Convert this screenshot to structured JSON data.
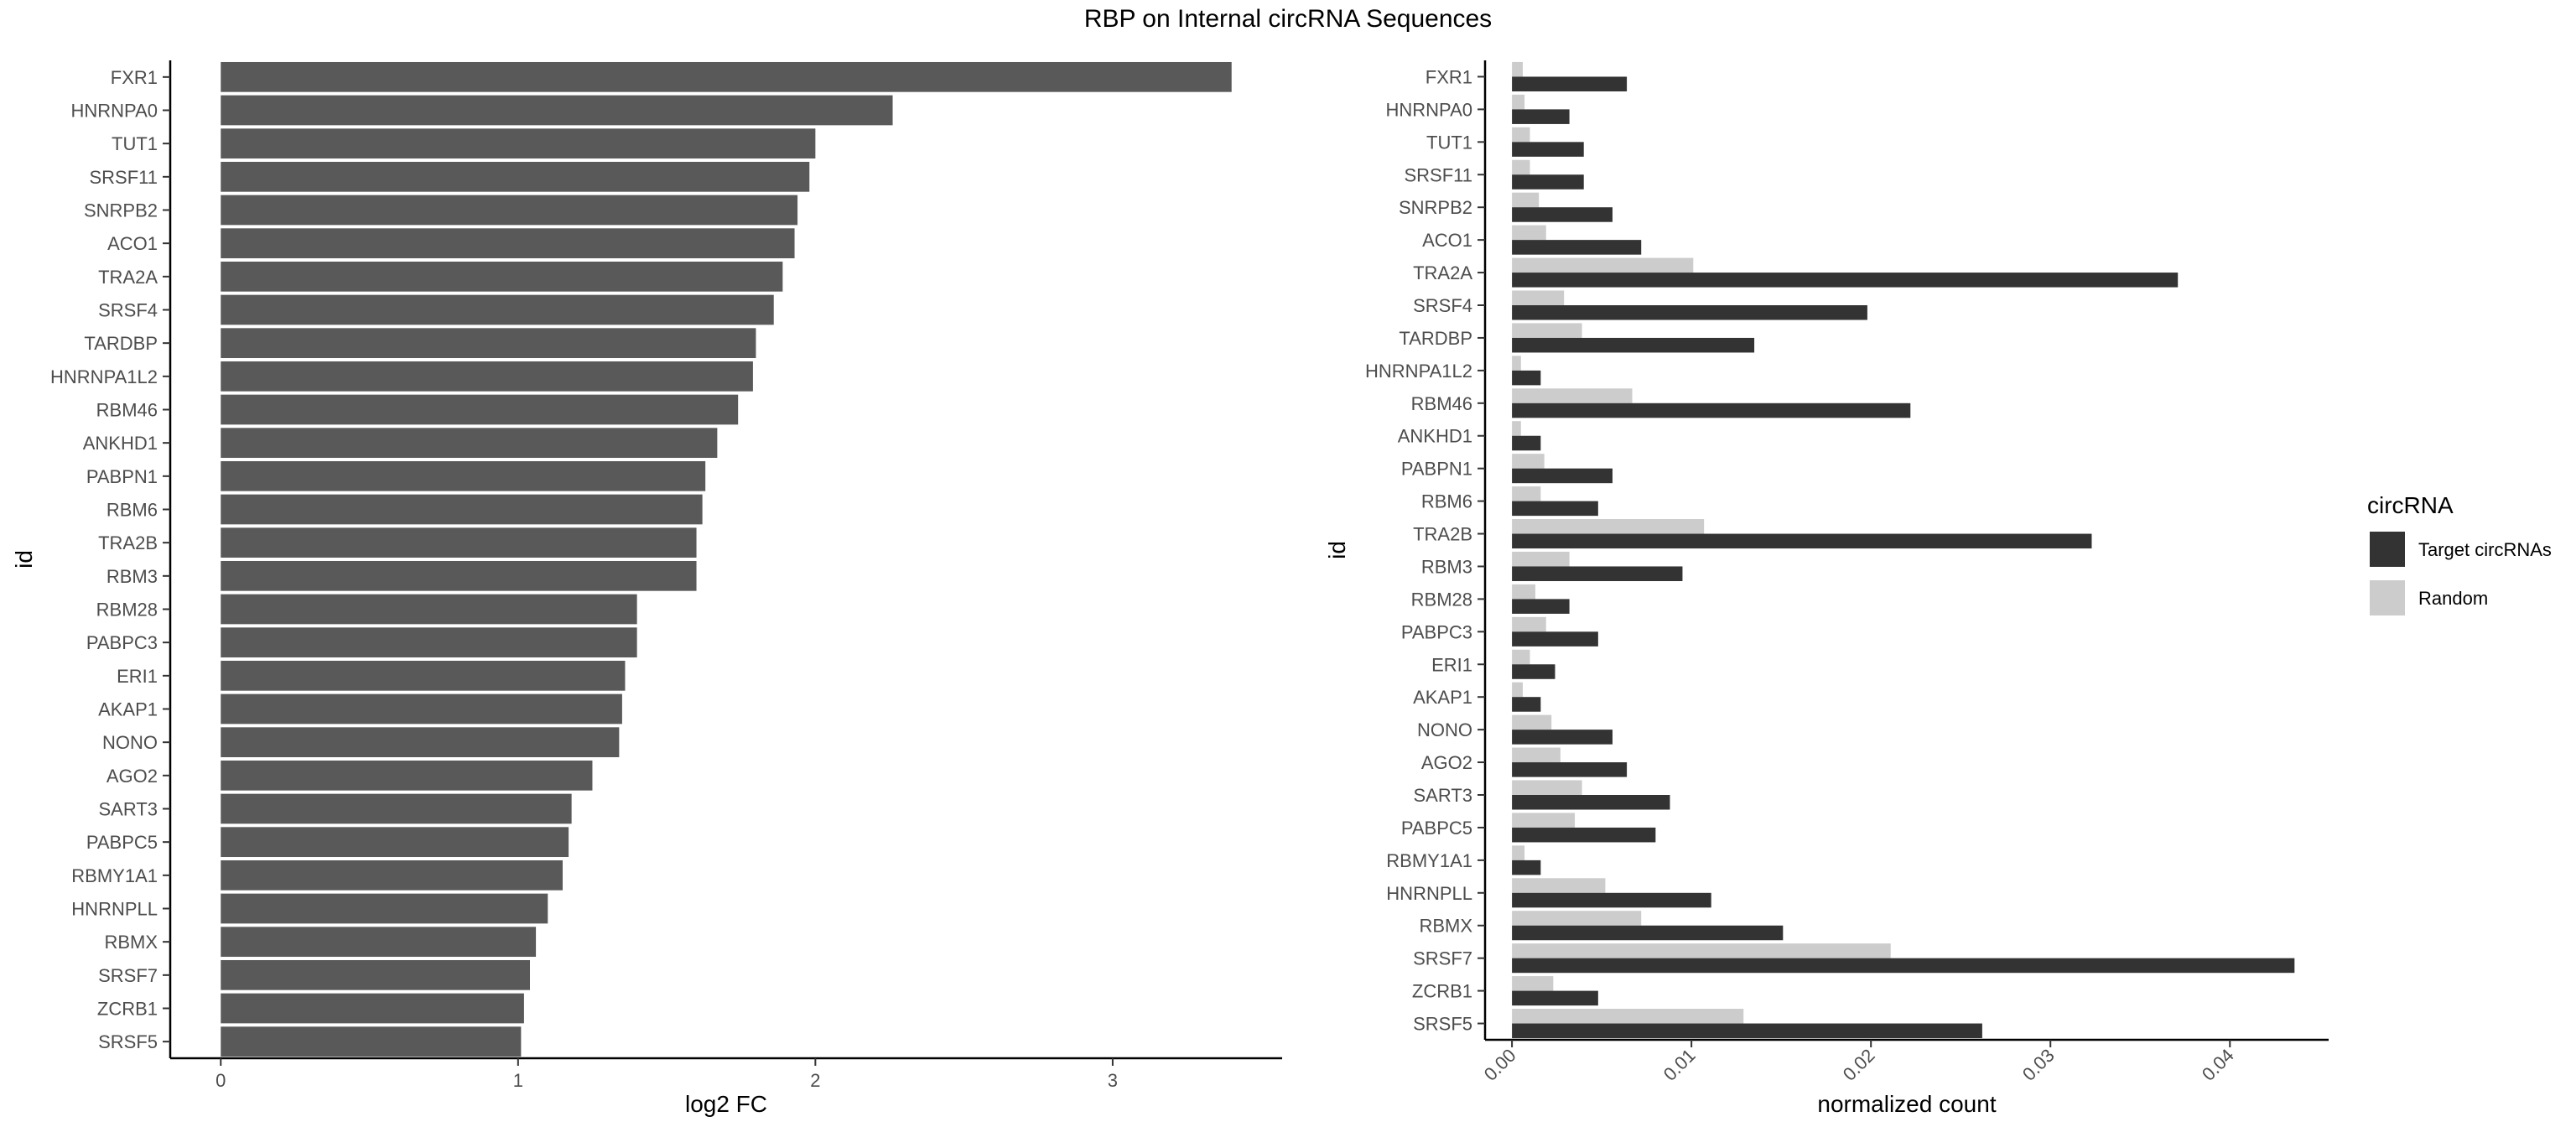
{
  "title": "RBP on Internal circRNA Sequences",
  "chart_data": [
    {
      "type": "bar",
      "orientation": "horizontal",
      "xlabel": "log2 FC",
      "ylabel": "id",
      "xlim": [
        -0.17,
        3.57
      ],
      "xticks": [
        0,
        1,
        2,
        3
      ],
      "xtick_labels": [
        "0",
        "1",
        "2",
        "3"
      ],
      "grid": false,
      "bar_color": "#595959",
      "categories": [
        "FXR1",
        "HNRNPA0",
        "TUT1",
        "SRSF11",
        "SNRPB2",
        "ACO1",
        "TRA2A",
        "SRSF4",
        "TARDBP",
        "HNRNPA1L2",
        "RBM46",
        "ANKHD1",
        "PABPN1",
        "RBM6",
        "TRA2B",
        "RBM3",
        "RBM28",
        "PABPC3",
        "ERI1",
        "AKAP1",
        "NONO",
        "AGO2",
        "SART3",
        "PABPC5",
        "RBMY1A1",
        "HNRNPLL",
        "RBMX",
        "SRSF7",
        "ZCRB1",
        "SRSF5"
      ],
      "values": [
        3.4,
        2.26,
        2.0,
        1.98,
        1.94,
        1.93,
        1.89,
        1.86,
        1.8,
        1.79,
        1.74,
        1.67,
        1.63,
        1.62,
        1.6,
        1.6,
        1.4,
        1.4,
        1.36,
        1.35,
        1.34,
        1.25,
        1.18,
        1.17,
        1.15,
        1.1,
        1.06,
        1.04,
        1.02,
        1.01
      ]
    },
    {
      "type": "bar",
      "orientation": "horizontal",
      "grouped": true,
      "xlabel": "normalized count",
      "ylabel": "id",
      "xlim": [
        -0.0015,
        0.0455
      ],
      "xticks": [
        0,
        0.01,
        0.02,
        0.03,
        0.04
      ],
      "xtick_labels": [
        "0.00",
        "0.01",
        "0.02",
        "0.03",
        "0.04"
      ],
      "xtick_rotation": -45,
      "grid": false,
      "legend": {
        "title": "circRNA",
        "position": "right"
      },
      "categories": [
        "FXR1",
        "HNRNPA0",
        "TUT1",
        "SRSF11",
        "SNRPB2",
        "ACO1",
        "TRA2A",
        "SRSF4",
        "TARDBP",
        "HNRNPA1L2",
        "RBM46",
        "ANKHD1",
        "PABPN1",
        "RBM6",
        "TRA2B",
        "RBM3",
        "RBM28",
        "PABPC3",
        "ERI1",
        "AKAP1",
        "NONO",
        "AGO2",
        "SART3",
        "PABPC5",
        "RBMY1A1",
        "HNRNPLL",
        "RBMX",
        "SRSF7",
        "ZCRB1",
        "SRSF5"
      ],
      "series": [
        {
          "name": "Target circRNAs",
          "color": "#333333",
          "values": [
            0.0064,
            0.0032,
            0.004,
            0.004,
            0.0056,
            0.0072,
            0.0371,
            0.0198,
            0.0135,
            0.0016,
            0.0222,
            0.0016,
            0.0056,
            0.0048,
            0.0323,
            0.0095,
            0.0032,
            0.0048,
            0.0024,
            0.0016,
            0.0056,
            0.0064,
            0.0088,
            0.008,
            0.0016,
            0.0111,
            0.0151,
            0.0436,
            0.0048,
            0.0262
          ]
        },
        {
          "name": "Random",
          "color": "#cccccc",
          "values": [
            0.0006,
            0.0007,
            0.001,
            0.001,
            0.0015,
            0.0019,
            0.0101,
            0.0029,
            0.0039,
            0.0005,
            0.0067,
            0.0005,
            0.0018,
            0.0016,
            0.0107,
            0.0032,
            0.0013,
            0.0019,
            0.001,
            0.0006,
            0.0022,
            0.0027,
            0.0039,
            0.0035,
            0.0007,
            0.0052,
            0.0072,
            0.0211,
            0.0023,
            0.0129
          ]
        }
      ]
    }
  ]
}
